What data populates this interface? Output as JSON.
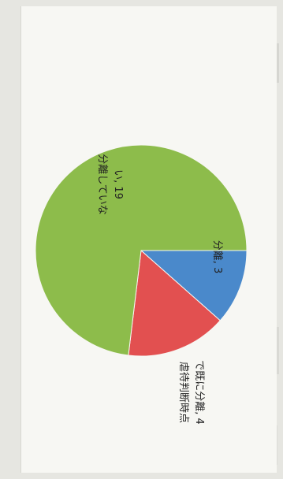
{
  "chart_data": {
    "type": "pie",
    "orientation": "rotated-90-clockwise",
    "slices": [
      {
        "label": "分離",
        "value": 3,
        "color": "#4a89cb"
      },
      {
        "label": "虐待判断時点で既に分離",
        "value": 4,
        "color": "#e25050"
      },
      {
        "label": "分離していない",
        "value": 19,
        "color": "#8dbc4b"
      }
    ],
    "data_labels": [
      {
        "lines": [
          "分離, 3"
        ]
      },
      {
        "lines": [
          "虐待判断時点",
          "で既に分離, 4"
        ]
      },
      {
        "lines": [
          "分離していな",
          "い, 19"
        ]
      }
    ]
  }
}
